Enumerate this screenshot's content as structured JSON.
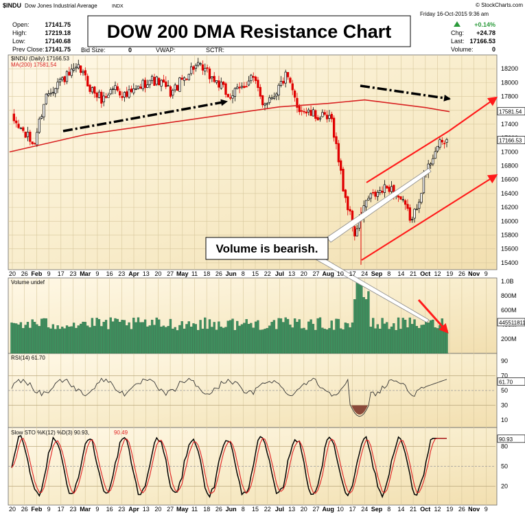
{
  "header": {
    "symbol": "$INDU",
    "name": "Dow Jones Industrial Average",
    "exchange": "INDX",
    "source": "© StockCharts.com",
    "date": "Friday  16-Oct-2015  9:36 am",
    "fields_left": [
      {
        "label": "Open:",
        "value": "17141.75"
      },
      {
        "label": "High:",
        "value": "17219.18"
      },
      {
        "label": "Low:",
        "value": "17140.68"
      },
      {
        "label": "Prev Close:",
        "value": "17141.75"
      }
    ],
    "bidsize_label": "Bid Size:",
    "bidsize_value": "0",
    "vwap_label": "VWAP:",
    "sctr_label": "SCTR:",
    "chg_pct": "+0.14%",
    "chg_label": "Chg:",
    "chg_value": "+24.78",
    "last_label": "Last:",
    "last_value": "17166.53",
    "volume_label": "Volume:",
    "volume_value": "0"
  },
  "chart_data": {
    "type": "candlestick",
    "title": "DOW 200 DMA Resistance Chart",
    "legend": {
      "price": "$INDU (Daily) 17166.53",
      "ma": "MA(200) 17581.54",
      "volume": "Volume undef",
      "rsi": "RSI(14) 61.70",
      "sto_k": "Slow STO %K(12) %D(3) 90.93,",
      "sto_d": "90.49"
    },
    "annotation": "Volume is bearish.",
    "price_axis": {
      "range": [
        15300,
        18400
      ],
      "ticks": [
        15400,
        15600,
        15800,
        16000,
        16200,
        16400,
        16600,
        16800,
        17000,
        17200,
        17400,
        17600,
        17800,
        18000,
        18200
      ]
    },
    "ma_badge": "17581.54",
    "last_badge": "17166.53",
    "volume_axis": {
      "ticks": [
        "1.0B",
        "800M",
        "600M",
        "400M",
        "200M"
      ],
      "badge": "445511811"
    },
    "rsi_axis": {
      "ticks": [
        "90",
        "70",
        "50",
        "30",
        "10"
      ],
      "badge": "61.70"
    },
    "sto_axis": {
      "ticks": [
        "80",
        "50",
        "20"
      ],
      "badge": "90.93"
    },
    "x_labels_top": [
      "20",
      "26",
      "Feb",
      "9",
      "17",
      "23",
      "Mar",
      "9",
      "16",
      "23",
      "Apr",
      "13",
      "20",
      "27",
      "May",
      "11",
      "18",
      "26",
      "Jun",
      "8",
      "15",
      "22",
      "Jul",
      "13",
      "20",
      "27",
      "Aug",
      "10",
      "17",
      "24",
      "Sep",
      "8",
      "14",
      "21",
      "Oct",
      "12",
      "19",
      "26",
      "Nov",
      "9"
    ],
    "x_labels_bottom": [
      "20",
      "26",
      "Feb",
      "9",
      "17",
      "23",
      "Mar",
      "9",
      "16",
      "23",
      "Apr",
      "13",
      "20",
      "27",
      "May",
      "11",
      "18",
      "26",
      "Jun",
      "8",
      "15",
      "22",
      "Jul",
      "13",
      "20",
      "27",
      "Aug",
      "10",
      "17",
      "24",
      "Sep",
      "8",
      "14",
      "21",
      "Oct",
      "12",
      "19",
      "26",
      "Nov",
      "9"
    ],
    "price_anchors": [
      {
        "label": "20",
        "value": 17500
      },
      {
        "label": "26",
        "value": 17300
      },
      {
        "label": "Feb",
        "value": 17100
      },
      {
        "label": "9",
        "value": 17800
      },
      {
        "label": "17",
        "value": 18000
      },
      {
        "label": "23",
        "value": 18100
      },
      {
        "label": "Mar",
        "value": 18200
      },
      {
        "label": "9",
        "value": 17900
      },
      {
        "label": "16",
        "value": 17750
      },
      {
        "label": "23",
        "value": 17950
      },
      {
        "label": "Apr",
        "value": 17800
      },
      {
        "label": "13",
        "value": 17900
      },
      {
        "label": "20",
        "value": 18050
      },
      {
        "label": "27",
        "value": 18000
      },
      {
        "label": "May",
        "value": 17850
      },
      {
        "label": "11",
        "value": 18050
      },
      {
        "label": "18",
        "value": 18250
      },
      {
        "label": "26",
        "value": 18150
      },
      {
        "label": "Jun",
        "value": 18000
      },
      {
        "label": "8",
        "value": 17800
      },
      {
        "label": "15",
        "value": 17900
      },
      {
        "label": "22",
        "value": 18100
      },
      {
        "label": "Jul",
        "value": 17700
      },
      {
        "label": "13",
        "value": 17850
      },
      {
        "label": "20",
        "value": 18100
      },
      {
        "label": "27",
        "value": 17650
      },
      {
        "label": "Aug",
        "value": 17550
      },
      {
        "label": "10",
        "value": 17500
      },
      {
        "label": "17",
        "value": 17450
      },
      {
        "label": "21",
        "value": 16450
      },
      {
        "label": "24",
        "value": 15800
      },
      {
        "label": "Sep",
        "value": 16300
      },
      {
        "label": "8",
        "value": 16400
      },
      {
        "label": "14",
        "value": 16500
      },
      {
        "label": "21",
        "value": 16300
      },
      {
        "label": "28",
        "value": 16000
      },
      {
        "label": "Oct",
        "value": 16600
      },
      {
        "label": "12",
        "value": 17050
      },
      {
        "label": "16",
        "value": 17166
      }
    ],
    "ma200_anchors": [
      {
        "label": "20",
        "value": 17000
      },
      {
        "label": "Mar",
        "value": 17250
      },
      {
        "label": "May",
        "value": 17450
      },
      {
        "label": "Jul",
        "value": 17650
      },
      {
        "label": "Aug",
        "value": 17700
      },
      {
        "label": "24",
        "value": 17750
      },
      {
        "label": "Oct",
        "value": 17640
      },
      {
        "label": "16",
        "value": 17581
      }
    ],
    "colors": {
      "up": "#000000",
      "down": "#e00000",
      "ma": "#d82020",
      "volume": "#3e8f5e",
      "trend": "#ff1a1a",
      "background": "#f7edd2"
    }
  }
}
